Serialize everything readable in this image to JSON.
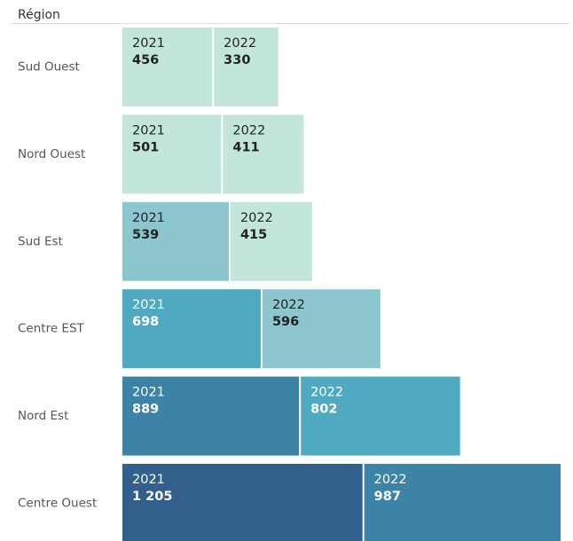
{
  "chart_data": {
    "type": "bar",
    "orientation": "horizontal",
    "stacked": true,
    "header": "Région",
    "categories": [
      "Sud Ouest",
      "Nord Ouest",
      "Sud Est",
      "Centre EST",
      "Nord Est",
      "Centre Ouest"
    ],
    "series": [
      {
        "name": "2021",
        "values": [
          456,
          501,
          539,
          698,
          889,
          1205
        ],
        "value_labels": [
          "456",
          "501",
          "539",
          "698",
          "889",
          "1 205"
        ],
        "colors": [
          "#c2e6dc",
          "#c2e6dc",
          "#8cc6cf",
          "#4fa9c1",
          "#3c83a7",
          "#325f8c"
        ]
      },
      {
        "name": "2022",
        "values": [
          330,
          411,
          415,
          596,
          802,
          987
        ],
        "colors": [
          "#c2e6dc",
          "#c2e6dc",
          "#c2e6dc",
          "#8cc6cf",
          "#4fa9c1",
          "#3c83a7"
        ]
      }
    ]
  }
}
